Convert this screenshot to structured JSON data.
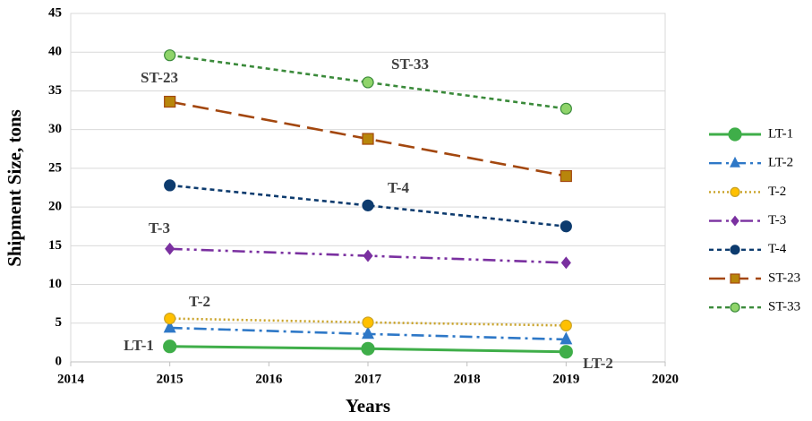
{
  "chart_data": {
    "type": "line",
    "x_label": "Years",
    "y_label": "Shipment Size, tons",
    "x": [
      2015,
      2017,
      2019
    ],
    "xlim": [
      2014,
      2020
    ],
    "xticks": [
      2014,
      2015,
      2016,
      2017,
      2018,
      2019,
      2020
    ],
    "ylim": [
      0,
      45
    ],
    "yticks": [
      0,
      5,
      10,
      15,
      20,
      25,
      30,
      35,
      40,
      45
    ],
    "grid": true,
    "legend": "right",
    "series": [
      {
        "name": "LT-1",
        "color": "#3fae49",
        "marker": "circle",
        "marker_fill": "#3fae49",
        "line_style": "solid",
        "values": [
          2.0,
          1.7,
          1.3
        ]
      },
      {
        "name": "LT-2",
        "color": "#2e78c7",
        "marker": "triangle",
        "marker_fill": "#2e78c7",
        "line_style": "dash-dot",
        "values": [
          4.4,
          3.6,
          2.9
        ]
      },
      {
        "name": "T-2",
        "color": "#c9a227",
        "marker": "circle",
        "marker_fill": "#ffc000",
        "line_style": "dotted",
        "values": [
          5.6,
          5.1,
          4.7
        ]
      },
      {
        "name": "T-3",
        "color": "#7a30a0",
        "marker": "diamond",
        "marker_fill": "#7a30a0",
        "line_style": "dash-dot-dot",
        "values": [
          14.6,
          13.7,
          12.8
        ]
      },
      {
        "name": "T-4",
        "color": "#0d3b6e",
        "marker": "circle",
        "marker_fill": "#0d3b6e",
        "line_style": "dashed",
        "values": [
          22.8,
          20.2,
          17.5
        ]
      },
      {
        "name": "ST-23",
        "color": "#a3470e",
        "marker": "square",
        "marker_fill": "#b8860b",
        "line_style": "long-dash",
        "values": [
          33.6,
          28.8,
          24.0
        ]
      },
      {
        "name": "ST-33",
        "color": "#3a8a3a",
        "marker": "circle",
        "marker_fill": "#8fd46a",
        "line_style": "dashed",
        "values": [
          39.6,
          36.1,
          32.7
        ]
      }
    ],
    "annotations": [
      "ST-23",
      "ST-33",
      "T-4",
      "T-3",
      "T-2",
      "LT-1",
      "LT-2"
    ]
  }
}
